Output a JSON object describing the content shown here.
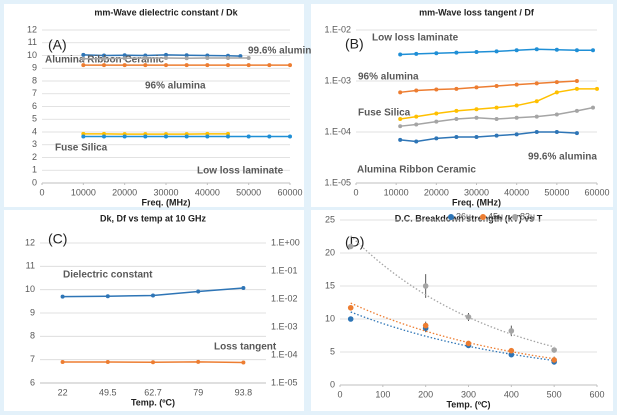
{
  "chart_data": [
    {
      "type": "line",
      "title": "mm-Wave dielectric constant / Dk",
      "panel_label": "(A)",
      "xlabel": "Freq. (MHz)",
      "xlim": [
        0,
        60000
      ],
      "xticks": [
        0,
        10000,
        20000,
        30000,
        40000,
        50000,
        60000
      ],
      "ylim": [
        0,
        12
      ],
      "yticks": [
        0,
        1,
        2,
        3,
        4,
        5,
        6,
        7,
        8,
        9,
        10,
        11,
        12
      ],
      "grid": true,
      "series": [
        {
          "name": "Alumina Ribbon Ceramic",
          "color": "#2e75b6",
          "x": [
            10000,
            15000,
            20000,
            25000,
            30000,
            35000,
            40000,
            45000,
            48000
          ],
          "values": [
            10.05,
            10.0,
            10.02,
            10.0,
            10.05,
            10.02,
            10.0,
            9.98,
            9.95
          ]
        },
        {
          "name": "99.6% alumina",
          "color": "#a5a5a5",
          "x": [
            10000,
            15000,
            20000,
            25000,
            30000,
            35000,
            40000,
            45000,
            50000
          ],
          "values": [
            9.75,
            9.75,
            9.78,
            9.8,
            9.8,
            9.78,
            9.8,
            9.8,
            9.8
          ]
        },
        {
          "name": "96% alumina",
          "color": "#ed7d31",
          "x": [
            10000,
            15000,
            20000,
            25000,
            30000,
            35000,
            40000,
            45000,
            50000,
            55000,
            60000
          ],
          "values": [
            9.25,
            9.25,
            9.25,
            9.25,
            9.25,
            9.25,
            9.25,
            9.25,
            9.25,
            9.25,
            9.25
          ]
        },
        {
          "name": "Fuse Silica",
          "color": "#ffc000",
          "x": [
            10000,
            15000,
            20000,
            25000,
            30000,
            35000,
            40000,
            45000
          ],
          "values": [
            3.85,
            3.85,
            3.83,
            3.83,
            3.83,
            3.83,
            3.85,
            3.85
          ]
        },
        {
          "name": "Low loss laminate",
          "color": "#1f8fd6",
          "x": [
            10000,
            15000,
            20000,
            25000,
            30000,
            35000,
            40000,
            45000,
            50000,
            55000,
            60000
          ],
          "values": [
            3.65,
            3.65,
            3.65,
            3.65,
            3.65,
            3.65,
            3.65,
            3.65,
            3.65,
            3.65,
            3.65
          ]
        }
      ]
    },
    {
      "type": "line",
      "title": "mm-Wave loss tangent / Df",
      "panel_label": "(B)",
      "xlabel": "Freq. (MHz)",
      "ylog": true,
      "xlim": [
        0,
        60000
      ],
      "xticks": [
        0,
        10000,
        20000,
        30000,
        40000,
        50000,
        60000
      ],
      "ylim": [
        1e-05,
        0.01
      ],
      "yticks": [
        {
          "value": 1e-05,
          "label": "1.E-05"
        },
        {
          "value": 0.0001,
          "label": "1.E-04"
        },
        {
          "value": 0.001,
          "label": "1.E-03"
        },
        {
          "value": 0.01,
          "label": "1.E-02"
        }
      ],
      "grid": true,
      "series": [
        {
          "name": "Low loss laminate",
          "color": "#1f8fd6",
          "x": [
            11000,
            15000,
            20000,
            25000,
            30000,
            35000,
            40000,
            45000,
            50000,
            55000,
            59000
          ],
          "values": [
            0.0033,
            0.0034,
            0.0035,
            0.0036,
            0.0037,
            0.0038,
            0.004,
            0.0042,
            0.0041,
            0.004,
            0.004
          ]
        },
        {
          "name": "96% alumina",
          "color": "#ed7d31",
          "x": [
            11000,
            15000,
            20000,
            25000,
            30000,
            35000,
            40000,
            45000,
            50000,
            55000
          ],
          "values": [
            0.0006,
            0.00065,
            0.00068,
            0.0007,
            0.00075,
            0.0008,
            0.00085,
            0.0009,
            0.00095,
            0.001
          ]
        },
        {
          "name": "Fuse Silica",
          "color": "#ffc000",
          "x": [
            11000,
            15000,
            20000,
            25000,
            30000,
            35000,
            40000,
            45000,
            50000,
            55000,
            60000
          ],
          "values": [
            0.00018,
            0.0002,
            0.00023,
            0.00026,
            0.00028,
            0.0003,
            0.00033,
            0.0004,
            0.0006,
            0.0007,
            0.0007
          ]
        },
        {
          "name": "99.6% alumina",
          "color": "#a5a5a5",
          "x": [
            11000,
            15000,
            20000,
            25000,
            30000,
            35000,
            40000,
            45000,
            50000,
            55000,
            59000
          ],
          "values": [
            0.00013,
            0.00014,
            0.00016,
            0.00018,
            0.00019,
            0.00018,
            0.00019,
            0.0002,
            0.00022,
            0.00026,
            0.0003
          ]
        },
        {
          "name": "Alumina Ribbon Ceramic",
          "color": "#2e75b6",
          "x": [
            11000,
            15000,
            20000,
            25000,
            30000,
            35000,
            40000,
            45000,
            50000,
            55000
          ],
          "values": [
            7e-05,
            6.5e-05,
            7.5e-05,
            8e-05,
            8e-05,
            8.5e-05,
            9e-05,
            0.0001,
            0.0001,
            9.5e-05
          ]
        }
      ]
    },
    {
      "type": "category-line",
      "title": "Dk, Df vs temp at 10 GHz",
      "panel_label": "(C)",
      "xlabel": "Temp. (ºC)",
      "categories": [
        "22",
        "49.5",
        "62.7",
        "79",
        "93.8"
      ],
      "ylim": [
        6,
        12
      ],
      "yticks": [
        6,
        7,
        8,
        9,
        10,
        11,
        12
      ],
      "grid": true,
      "y2log": true,
      "y2color": "#ff0000",
      "y2lim": [
        1e-05,
        1
      ],
      "y2ticks": [
        {
          "value": 1e-05,
          "label": "1.E-05"
        },
        {
          "value": 0.0001,
          "label": "1.E-04"
        },
        {
          "value": 0.001,
          "label": "1.E-03"
        },
        {
          "value": 0.01,
          "label": "1.E-02"
        },
        {
          "value": 0.1,
          "label": "1.E-01"
        },
        {
          "value": 1,
          "label": "1.E+00"
        }
      ],
      "series": [
        {
          "name": "Dielectric constant",
          "color": "#2e75b6",
          "label_color": "#2e75b6",
          "values": [
            9.7,
            9.72,
            9.75,
            9.92,
            10.07
          ]
        },
        {
          "name": "Loss tangent",
          "color": "#ed7d31",
          "label_color": "#ff0000",
          "axis": "y2",
          "values": [
            5.6e-05,
            5.6e-05,
            5.5e-05,
            5.7e-05,
            5.4e-05
          ]
        }
      ]
    },
    {
      "type": "scatter",
      "title": "D.C. Breakdown strength (kV) vs T",
      "panel_label": "(D)",
      "xlabel": "Temp. (ºC)",
      "trendline": "exponential",
      "xlim": [
        0,
        600
      ],
      "xticks": [
        0,
        100,
        200,
        300,
        400,
        500,
        600
      ],
      "ylim": [
        0,
        25
      ],
      "yticks": [
        0,
        5,
        10,
        15,
        20,
        25
      ],
      "grid": true,
      "series": [
        {
          "name": "36u",
          "color": "#2e75b6",
          "x": [
            25,
            200,
            300,
            400,
            500
          ],
          "values": [
            10,
            8.6,
            6,
            4.6,
            3.5
          ],
          "errors": [
            0.3,
            0.6,
            0.3,
            0.3,
            0.4
          ]
        },
        {
          "name": "45u",
          "color": "#ed7d31",
          "x": [
            25,
            200,
            300,
            400,
            500
          ],
          "values": [
            11.7,
            9,
            6.3,
            5.2,
            3.8
          ],
          "errors": [
            0.3,
            0.6,
            0.3,
            0.4,
            0.5
          ]
        },
        {
          "name": "83u",
          "color": "#a5a5a5",
          "x": [
            25,
            200,
            300,
            400,
            500
          ],
          "values": [
            21,
            15,
            10.3,
            8.2,
            5.3
          ],
          "errors": [
            0.3,
            1.8,
            0.6,
            0.8,
            0.3
          ]
        }
      ]
    }
  ]
}
